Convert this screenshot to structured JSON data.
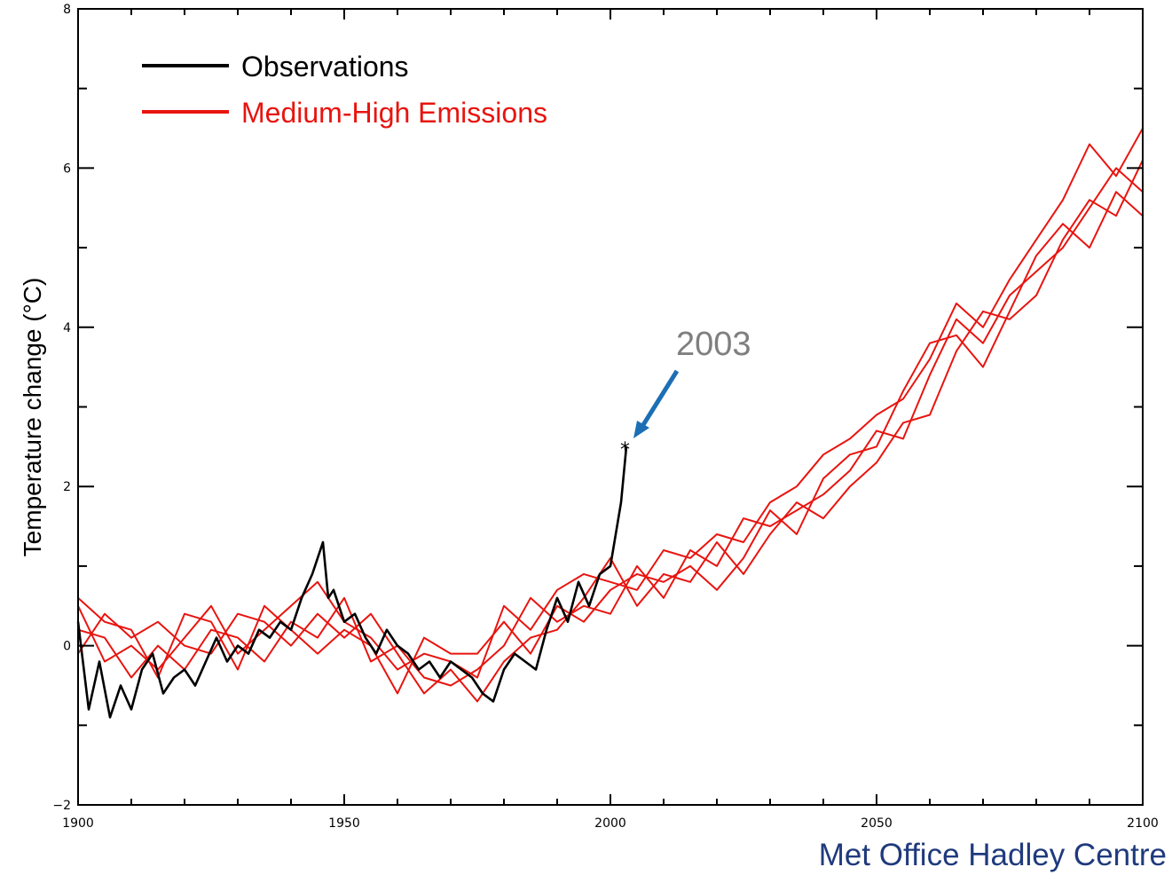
{
  "credit": "Met Office Hadley Centre",
  "colors": {
    "observations": "#000000",
    "projection": "#e8140f",
    "annotation_text": "#7f7f7f",
    "arrow": "#1c6fb5",
    "credit": "#1f3a7d"
  },
  "chart_data": {
    "type": "line",
    "title": "",
    "xlabel": "",
    "ylabel": "Temperature change (°C)",
    "xlim": [
      1900,
      2100
    ],
    "ylim": [
      -2,
      8
    ],
    "xticks": [
      1900,
      1950,
      2000,
      2050,
      2100
    ],
    "yticks": [
      -2,
      0,
      2,
      4,
      6,
      8
    ],
    "x_minor_step": 10,
    "y_minor_step": 1,
    "grid": false,
    "legend": {
      "position": "top-left",
      "entries": [
        {
          "label": "Observations",
          "color": "#000000"
        },
        {
          "label": "Medium-High Emissions",
          "color": "#e8140f"
        }
      ]
    },
    "annotation": {
      "text": "2003",
      "x": 2003,
      "y": 2.5,
      "marker": "*",
      "arrow_color": "#1c6fb5"
    },
    "series": [
      {
        "name": "Observations",
        "color": "#000000",
        "x": [
          1900,
          1902,
          1904,
          1906,
          1908,
          1910,
          1912,
          1914,
          1916,
          1918,
          1920,
          1922,
          1924,
          1926,
          1928,
          1930,
          1932,
          1934,
          1936,
          1938,
          1940,
          1942,
          1944,
          1946,
          1947,
          1948,
          1950,
          1952,
          1954,
          1956,
          1958,
          1960,
          1962,
          1964,
          1966,
          1968,
          1970,
          1972,
          1974,
          1976,
          1978,
          1980,
          1982,
          1984,
          1986,
          1988,
          1990,
          1992,
          1994,
          1996,
          1998,
          2000,
          2002,
          2003
        ],
        "y": [
          0.3,
          -0.8,
          -0.2,
          -0.9,
          -0.5,
          -0.8,
          -0.3,
          -0.1,
          -0.6,
          -0.4,
          -0.3,
          -0.5,
          -0.2,
          0.1,
          -0.2,
          0.0,
          -0.1,
          0.2,
          0.1,
          0.3,
          0.2,
          0.6,
          0.9,
          1.3,
          0.6,
          0.7,
          0.3,
          0.4,
          0.1,
          -0.1,
          0.2,
          0.0,
          -0.1,
          -0.3,
          -0.2,
          -0.4,
          -0.2,
          -0.3,
          -0.4,
          -0.6,
          -0.7,
          -0.3,
          -0.1,
          -0.2,
          -0.3,
          0.2,
          0.6,
          0.3,
          0.8,
          0.5,
          0.9,
          1.0,
          1.8,
          2.5
        ]
      },
      {
        "name": "",
        "color": "#e8140f",
        "x": [
          1900,
          1905,
          1910,
          1915,
          1920,
          1925,
          1930,
          1935,
          1940,
          1945,
          1950,
          1955,
          1960,
          1965,
          1970,
          1975,
          1980,
          1985,
          1990,
          1995,
          2000,
          2005,
          2010,
          2015,
          2020,
          2025,
          2030,
          2035,
          2040,
          2045,
          2050,
          2055,
          2060,
          2065,
          2070,
          2075,
          2080,
          2085,
          2090,
          2095,
          2100
        ],
        "y": [
          0.5,
          -0.2,
          0.0,
          -0.3,
          0.1,
          0.5,
          -0.1,
          0.2,
          0.5,
          0.8,
          0.3,
          0.1,
          -0.3,
          -0.1,
          -0.2,
          -0.4,
          0.5,
          0.2,
          0.7,
          0.9,
          0.8,
          0.7,
          1.2,
          1.1,
          1.4,
          1.3,
          1.8,
          2.0,
          2.4,
          2.6,
          2.9,
          3.1,
          3.6,
          4.3,
          4.0,
          4.6,
          5.1,
          5.6,
          6.3,
          5.9,
          6.5
        ]
      },
      {
        "name": "",
        "color": "#e8140f",
        "x": [
          1900,
          1905,
          1910,
          1915,
          1920,
          1925,
          1930,
          1935,
          1940,
          1945,
          1950,
          1955,
          1960,
          1965,
          1970,
          1975,
          1980,
          1985,
          1990,
          1995,
          2000,
          2005,
          2010,
          2015,
          2020,
          2025,
          2030,
          2035,
          2040,
          2045,
          2050,
          2055,
          2060,
          2065,
          2070,
          2075,
          2080,
          2085,
          2090,
          2095,
          2100
        ],
        "y": [
          0.2,
          0.1,
          -0.4,
          0.0,
          -0.3,
          0.2,
          0.1,
          -0.2,
          0.3,
          0.1,
          0.6,
          -0.2,
          0.0,
          -0.4,
          -0.5,
          -0.3,
          0.0,
          0.6,
          0.3,
          0.5,
          0.4,
          1.0,
          0.6,
          1.2,
          1.0,
          1.6,
          1.5,
          1.7,
          1.9,
          2.2,
          2.7,
          2.6,
          3.4,
          4.1,
          3.8,
          4.4,
          4.7,
          5.0,
          5.5,
          6.0,
          5.7
        ]
      },
      {
        "name": "",
        "color": "#e8140f",
        "x": [
          1900,
          1905,
          1910,
          1915,
          1920,
          1925,
          1930,
          1935,
          1940,
          1945,
          1950,
          1955,
          1960,
          1965,
          1970,
          1975,
          1980,
          1985,
          1990,
          1995,
          2000,
          2005,
          2010,
          2015,
          2020,
          2025,
          2030,
          2035,
          2040,
          2045,
          2050,
          2055,
          2060,
          2065,
          2070,
          2075,
          2080,
          2085,
          2090,
          2095,
          2100
        ],
        "y": [
          -0.1,
          0.4,
          0.1,
          0.3,
          0.0,
          -0.1,
          0.4,
          0.3,
          0.0,
          0.4,
          0.1,
          0.4,
          -0.1,
          -0.6,
          -0.3,
          -0.7,
          -0.2,
          0.1,
          0.2,
          0.6,
          1.1,
          0.5,
          0.9,
          0.8,
          1.3,
          0.9,
          1.4,
          1.8,
          1.6,
          2.0,
          2.3,
          2.8,
          2.9,
          3.7,
          4.2,
          4.1,
          4.4,
          5.1,
          5.6,
          5.4,
          6.1
        ]
      },
      {
        "name": "",
        "color": "#e8140f",
        "x": [
          1900,
          1905,
          1910,
          1915,
          1920,
          1925,
          1930,
          1935,
          1940,
          1945,
          1950,
          1955,
          1960,
          1965,
          1970,
          1975,
          1980,
          1985,
          1990,
          1995,
          2000,
          2005,
          2010,
          2015,
          2020,
          2025,
          2030,
          2035,
          2040,
          2045,
          2050,
          2055,
          2060,
          2065,
          2070,
          2075,
          2080,
          2085,
          2090,
          2095,
          2100
        ],
        "y": [
          0.6,
          0.3,
          0.2,
          -0.4,
          0.4,
          0.3,
          -0.3,
          0.5,
          0.2,
          -0.1,
          0.2,
          0.0,
          -0.6,
          0.1,
          -0.1,
          -0.1,
          0.3,
          -0.1,
          0.5,
          0.3,
          0.7,
          0.9,
          0.8,
          1.0,
          0.7,
          1.1,
          1.7,
          1.4,
          2.1,
          2.4,
          2.5,
          3.2,
          3.8,
          3.9,
          3.5,
          4.2,
          4.9,
          5.3,
          5.0,
          5.7,
          5.4
        ]
      }
    ]
  }
}
